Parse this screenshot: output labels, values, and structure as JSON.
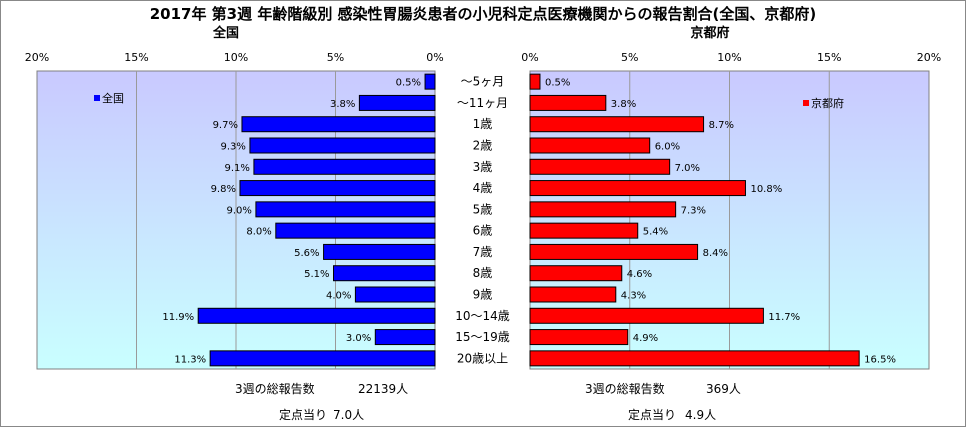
{
  "title": "2017年 第3週 年齢階級別 感染性胃腸炎患者の小児科定点医療機関からの報告割合(全国、京都府)",
  "colors": {
    "national_fill": "#0000ff",
    "kyoto_fill": "#ff0000",
    "bar_stroke": "#000000",
    "plot_bg_top": "#c9c9ff",
    "plot_bg_bottom": "#c9ffff",
    "grid": "#9a9a9a"
  },
  "chart_data": [
    {
      "type": "bar",
      "orientation": "horizontal",
      "direction": "right-to-left",
      "title": "全国",
      "legend": "全国",
      "legend_placement": "top-left",
      "xlim": [
        0,
        20
      ],
      "ticks": [
        "20%",
        "15%",
        "10%",
        "5%",
        "0%"
      ],
      "grid": true,
      "categories": [
        "～5ヶ月",
        "～11ヶ月",
        "1歳",
        "2歳",
        "3歳",
        "4歳",
        "5歳",
        "6歳",
        "7歳",
        "8歳",
        "9歳",
        "10～14歳",
        "15～19歳",
        "20歳以上"
      ],
      "series": [
        {
          "name": "全国",
          "values": [
            0.5,
            3.8,
            9.7,
            9.3,
            9.1,
            9.8,
            9.0,
            8.0,
            5.6,
            5.1,
            4.0,
            11.9,
            3.0,
            11.3
          ],
          "labels": [
            "0.5%",
            "3.8%",
            "9.7%",
            "9.3%",
            "9.1%",
            "9.8%",
            "9.0%",
            "8.0%",
            "5.6%",
            "5.1%",
            "4.0%",
            "11.9%",
            "3.0%",
            "11.3%"
          ]
        }
      ]
    },
    {
      "type": "bar",
      "orientation": "horizontal",
      "direction": "left-to-right",
      "title": "京都府",
      "legend": "京都府",
      "legend_placement": "top-right",
      "xlim": [
        0,
        20
      ],
      "ticks": [
        "0%",
        "5%",
        "10%",
        "15%",
        "20%"
      ],
      "grid": true,
      "categories": [
        "～5ヶ月",
        "～11ヶ月",
        "1歳",
        "2歳",
        "3歳",
        "4歳",
        "5歳",
        "6歳",
        "7歳",
        "8歳",
        "9歳",
        "10～14歳",
        "15～19歳",
        "20歳以上"
      ],
      "series": [
        {
          "name": "京都府",
          "values": [
            0.5,
            3.8,
            8.7,
            6.0,
            7.0,
            10.8,
            7.3,
            5.4,
            8.4,
            4.6,
            4.3,
            11.7,
            4.9,
            16.5
          ],
          "labels": [
            "0.5%",
            "3.8%",
            "8.7%",
            "6.0%",
            "7.0%",
            "10.8%",
            "7.3%",
            "5.4%",
            "8.4%",
            "4.6%",
            "4.3%",
            "11.7%",
            "4.9%",
            "16.5%"
          ]
        }
      ]
    }
  ],
  "footer": {
    "national": {
      "total_label": "3週の総報告数",
      "total_value": "22139人",
      "per_label": "定点当り",
      "per_value": "7.0人"
    },
    "kyoto": {
      "total_label": "3週の総報告数",
      "total_value": "369人",
      "per_label": "定点当り",
      "per_value": "4.9人"
    }
  }
}
